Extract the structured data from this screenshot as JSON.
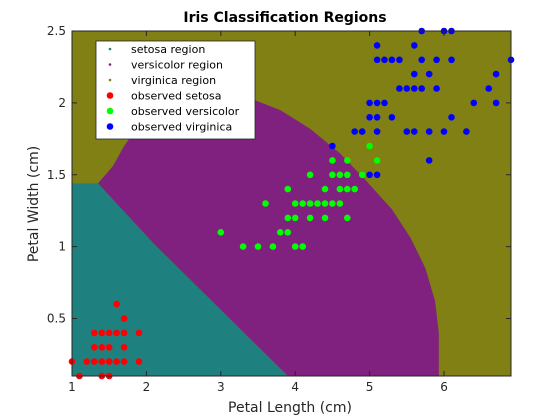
{
  "chart_data": {
    "type": "scatter",
    "title": "Iris Classification Regions",
    "xlabel": "Petal Length (cm)",
    "ylabel": "Petal Width (cm)",
    "xlim": [
      1,
      6.9
    ],
    "ylim": [
      0.1,
      2.5
    ],
    "xticks": [
      "1",
      "2",
      "3",
      "4",
      "5",
      "6"
    ],
    "yticks": [
      "0.5",
      "1",
      "1.5",
      "2",
      "2.5"
    ],
    "xtick_values": [
      1,
      2,
      3,
      4,
      5,
      6
    ],
    "ytick_values": [
      0.5,
      1,
      1.5,
      2,
      2.5
    ],
    "grid": false,
    "legend_position": "top-left",
    "regions": [
      {
        "name": "setosa region",
        "color": "#1f8080"
      },
      {
        "name": "versicolor region",
        "color": "#80207f"
      },
      {
        "name": "virginica region",
        "color": "#808014"
      }
    ],
    "series": [
      {
        "name": "observed setosa",
        "color": "#ff0000",
        "points": [
          [
            1.0,
            0.2
          ],
          [
            1.1,
            0.1
          ],
          [
            1.2,
            0.2
          ],
          [
            1.3,
            0.2
          ],
          [
            1.3,
            0.3
          ],
          [
            1.3,
            0.4
          ],
          [
            1.4,
            0.1
          ],
          [
            1.4,
            0.2
          ],
          [
            1.4,
            0.3
          ],
          [
            1.4,
            0.4
          ],
          [
            1.5,
            0.1
          ],
          [
            1.5,
            0.2
          ],
          [
            1.5,
            0.3
          ],
          [
            1.5,
            0.4
          ],
          [
            1.6,
            0.2
          ],
          [
            1.6,
            0.4
          ],
          [
            1.6,
            0.6
          ],
          [
            1.7,
            0.2
          ],
          [
            1.7,
            0.3
          ],
          [
            1.7,
            0.4
          ],
          [
            1.7,
            0.5
          ],
          [
            1.9,
            0.2
          ],
          [
            1.9,
            0.4
          ]
        ]
      },
      {
        "name": "observed versicolor",
        "color": "#00ff00",
        "points": [
          [
            3.0,
            1.1
          ],
          [
            3.3,
            1.0
          ],
          [
            3.5,
            1.0
          ],
          [
            3.6,
            1.3
          ],
          [
            3.7,
            1.0
          ],
          [
            3.8,
            1.1
          ],
          [
            3.9,
            1.1
          ],
          [
            3.9,
            1.2
          ],
          [
            3.9,
            1.4
          ],
          [
            4.0,
            1.0
          ],
          [
            4.0,
            1.2
          ],
          [
            4.0,
            1.3
          ],
          [
            4.1,
            1.0
          ],
          [
            4.1,
            1.3
          ],
          [
            4.2,
            1.2
          ],
          [
            4.2,
            1.3
          ],
          [
            4.2,
            1.5
          ],
          [
            4.3,
            1.3
          ],
          [
            4.4,
            1.2
          ],
          [
            4.4,
            1.3
          ],
          [
            4.4,
            1.4
          ],
          [
            4.5,
            1.3
          ],
          [
            4.5,
            1.5
          ],
          [
            4.6,
            1.3
          ],
          [
            4.6,
            1.4
          ],
          [
            4.6,
            1.5
          ],
          [
            4.7,
            1.2
          ],
          [
            4.7,
            1.4
          ],
          [
            4.7,
            1.5
          ],
          [
            4.7,
            1.6
          ],
          [
            4.8,
            1.4
          ],
          [
            4.8,
            1.8
          ],
          [
            4.9,
            1.5
          ],
          [
            5.0,
            1.7
          ],
          [
            5.1,
            1.6
          ],
          [
            4.5,
            1.6
          ]
        ]
      },
      {
        "name": "observed virginica",
        "color": "#0000ff",
        "points": [
          [
            4.5,
            1.7
          ],
          [
            4.8,
            1.8
          ],
          [
            4.9,
            1.8
          ],
          [
            5.0,
            1.5
          ],
          [
            5.0,
            1.9
          ],
          [
            5.0,
            2.0
          ],
          [
            5.1,
            1.5
          ],
          [
            5.1,
            1.8
          ],
          [
            5.1,
            1.9
          ],
          [
            5.1,
            2.0
          ],
          [
            5.1,
            2.3
          ],
          [
            5.1,
            2.4
          ],
          [
            5.2,
            2.0
          ],
          [
            5.2,
            2.3
          ],
          [
            5.3,
            1.9
          ],
          [
            5.3,
            2.3
          ],
          [
            5.4,
            2.1
          ],
          [
            5.4,
            2.3
          ],
          [
            5.5,
            1.8
          ],
          [
            5.5,
            2.1
          ],
          [
            5.6,
            1.8
          ],
          [
            5.6,
            2.1
          ],
          [
            5.6,
            2.2
          ],
          [
            5.6,
            2.4
          ],
          [
            5.7,
            2.1
          ],
          [
            5.7,
            2.3
          ],
          [
            5.7,
            2.5
          ],
          [
            5.8,
            1.6
          ],
          [
            5.8,
            1.8
          ],
          [
            5.8,
            2.2
          ],
          [
            5.9,
            2.1
          ],
          [
            5.9,
            2.3
          ],
          [
            6.0,
            1.8
          ],
          [
            6.0,
            2.5
          ],
          [
            6.1,
            1.9
          ],
          [
            6.1,
            2.3
          ],
          [
            6.1,
            2.5
          ],
          [
            6.3,
            1.8
          ],
          [
            6.4,
            2.0
          ],
          [
            6.6,
            2.1
          ],
          [
            6.7,
            2.0
          ],
          [
            6.7,
            2.2
          ],
          [
            6.9,
            2.3
          ]
        ]
      }
    ]
  }
}
